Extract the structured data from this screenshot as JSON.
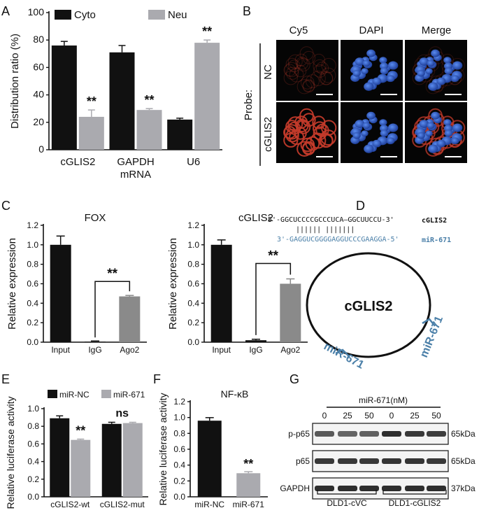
{
  "panels": {
    "A": "A",
    "B": "B",
    "C": "C",
    "D": "D",
    "E": "E",
    "F": "F",
    "G": "G"
  },
  "colors": {
    "black_bar": "#111111",
    "gray_bar": "#aaaaaf",
    "mid_gray_bar": "#8a8a8a",
    "mir_blue": "#4a7fa8",
    "cy5_red": "#c23a2a",
    "dapi_blue": "#2f63c8"
  },
  "sig": {
    "double_star": "**",
    "ns": "ns"
  },
  "chart_data": [
    {
      "panel": "A",
      "type": "bar",
      "ylabel": "Distribution ratio (%)",
      "ylim": [
        0,
        100
      ],
      "yticks": [
        "0",
        "20",
        "40",
        "60",
        "80",
        "100"
      ],
      "categories": [
        "cGLIS2",
        "GAPDH\nmRNA",
        "U6"
      ],
      "category_lines": [
        [
          "cGLIS2"
        ],
        [
          "GAPDH",
          "mRNA"
        ],
        [
          "U6"
        ]
      ],
      "series": [
        {
          "name": "Cyto",
          "values": [
            76,
            71,
            22
          ],
          "errors": [
            3,
            5,
            1
          ]
        },
        {
          "name": "Neu",
          "values": [
            24,
            29,
            78
          ],
          "errors": [
            5,
            1,
            2
          ]
        }
      ],
      "annotations": [
        "**",
        "**",
        "**"
      ]
    },
    {
      "panel": "C-left",
      "type": "bar",
      "title": "FOX",
      "ylabel": "Relative expression",
      "ylim": [
        0,
        1.2
      ],
      "yticks": [
        "0.0",
        "0.2",
        "0.4",
        "0.6",
        "0.8",
        "1.0",
        "1.2"
      ],
      "categories": [
        "Input",
        "IgG",
        "Ago2"
      ],
      "values": [
        1.0,
        0.005,
        0.47
      ],
      "errors": [
        0.09,
        0.0,
        0.01
      ],
      "annotation": "**"
    },
    {
      "panel": "C-right",
      "type": "bar",
      "title": "cGLIS2",
      "ylabel": "Relative expression",
      "ylim": [
        0,
        1.2
      ],
      "yticks": [
        "0.0",
        "0.2",
        "0.4",
        "0.6",
        "0.8",
        "1.0",
        "1.2"
      ],
      "categories": [
        "Input",
        "IgG",
        "Ago2"
      ],
      "values": [
        1.0,
        0.02,
        0.6
      ],
      "errors": [
        0.05,
        0.01,
        0.05
      ],
      "annotation": "**"
    },
    {
      "panel": "E",
      "type": "bar",
      "ylabel": "Relative luciferase activity",
      "ylim": [
        0,
        1.1
      ],
      "yticks": [
        "0.0",
        "0.2",
        "0.4",
        "0.6",
        "0.8",
        "1.0"
      ],
      "categories": [
        "cGLIS2-wt",
        "cGLIS2-mut"
      ],
      "series": [
        {
          "name": "miR-NC",
          "values": [
            0.98,
            0.91
          ],
          "errors": [
            0.03,
            0.02
          ]
        },
        {
          "name": "miR-671",
          "values": [
            0.71,
            0.92
          ],
          "errors": [
            0.01,
            0.01
          ]
        }
      ],
      "annotations": [
        "**",
        "ns"
      ]
    },
    {
      "panel": "F",
      "type": "bar",
      "title": "NF-κB",
      "ylabel": "Relative luciferase activity",
      "ylim": [
        0,
        1.25
      ],
      "yticks": [
        "0.0",
        "0.2",
        "0.4",
        "0.6",
        "0.8",
        "1.0",
        "1.2"
      ],
      "categories": [
        "miR-NC",
        "miR-671"
      ],
      "values": [
        1.0,
        0.31
      ],
      "errors": [
        0.04,
        0.02
      ],
      "annotation": "**"
    }
  ],
  "panel_b": {
    "columns": [
      "Cy5",
      "DAPI",
      "Merge"
    ],
    "probe_label": "Probe:",
    "rows": [
      "NC",
      "cGLIS2"
    ]
  },
  "panel_d": {
    "seq_top": "5'-GGCUCCCCGCCCUCA—GGCUUCCU-3'",
    "seq_top_label": "cGLIS2",
    "pairing": "||||||   |||||||",
    "seq_bottom": "3'-GAGGUCGGGGAGGUCCCGAAGGA-5'",
    "seq_bottom_label": "miR-671",
    "circle_label": "cGLIS2",
    "mir_left": "miR-671",
    "mir_right": "miR-671"
  },
  "panel_g": {
    "header": "miR-671(nM)",
    "conc": [
      "0",
      "25",
      "50",
      "0",
      "25",
      "50"
    ],
    "rows": [
      {
        "label": "p-p65",
        "size": "65kDa",
        "intensity": [
          0.75,
          0.7,
          0.72,
          0.95,
          0.9,
          0.88
        ]
      },
      {
        "label": "p65",
        "size": "65kDa",
        "intensity": [
          0.9,
          0.9,
          0.9,
          0.92,
          0.92,
          0.9
        ]
      },
      {
        "label": "GAPDH",
        "size": "37kDa",
        "intensity": [
          0.95,
          0.95,
          0.95,
          0.95,
          0.95,
          0.95
        ]
      }
    ],
    "groups": [
      "DLD1-cVC",
      "DLD1-cGLIS2"
    ]
  }
}
